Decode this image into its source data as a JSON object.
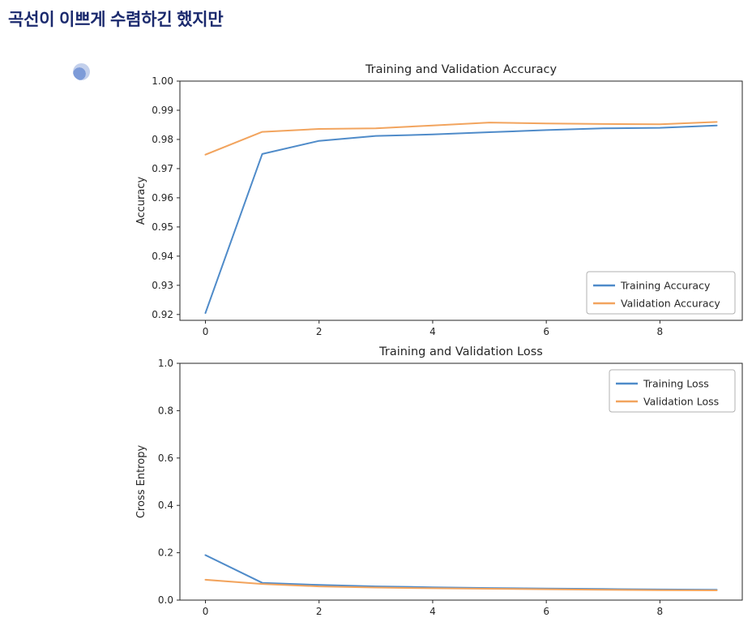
{
  "heading": {
    "text": "곡선이 이쁘게 수렴하긴 했지만"
  },
  "icons": {
    "avatar": "profile-avatar-icon"
  },
  "colors": {
    "heading_text": "#1b2a6e",
    "training_line": "#4f8bc9",
    "validation_line": "#f2a45e",
    "axis_text": "#262626",
    "legend_border": "#b0b0b0",
    "figure_bg": "#ffffff"
  },
  "chart_data": [
    {
      "type": "line",
      "title": "Training and Validation Accuracy",
      "xlabel": "",
      "ylabel": "Accuracy",
      "xlim": [
        -0.45,
        9.45
      ],
      "ylim": [
        0.918,
        1.0
      ],
      "xticks": [
        0,
        2,
        4,
        6,
        8
      ],
      "xtick_labels": [
        "0",
        "2",
        "4",
        "6",
        "8"
      ],
      "yticks": [
        0.92,
        0.93,
        0.94,
        0.95,
        0.96,
        0.97,
        0.98,
        0.99,
        1.0
      ],
      "ytick_labels": [
        "0.92",
        "0.93",
        "0.94",
        "0.95",
        "0.96",
        "0.97",
        "0.98",
        "0.99",
        "1.00"
      ],
      "grid": false,
      "legend": {
        "position": "lower right",
        "entries": [
          "Training Accuracy",
          "Validation Accuracy"
        ]
      },
      "x": [
        0,
        1,
        2,
        3,
        4,
        5,
        6,
        7,
        8,
        9
      ],
      "series": [
        {
          "name": "Training Accuracy",
          "color": "#4f8bc9",
          "values": [
            0.9205,
            0.975,
            0.9795,
            0.9812,
            0.9817,
            0.9825,
            0.9832,
            0.9838,
            0.984,
            0.9848
          ]
        },
        {
          "name": "Validation Accuracy",
          "color": "#f2a45e",
          "values": [
            0.9748,
            0.9826,
            0.9836,
            0.9838,
            0.9848,
            0.9858,
            0.9855,
            0.9853,
            0.9852,
            0.986
          ]
        }
      ]
    },
    {
      "type": "line",
      "title": "Training and Validation Loss",
      "xlabel": "",
      "ylabel": "Cross Entropy",
      "xlim": [
        -0.45,
        9.45
      ],
      "ylim": [
        0.0,
        1.0
      ],
      "xticks": [
        0,
        2,
        4,
        6,
        8
      ],
      "xtick_labels": [
        "0",
        "2",
        "4",
        "6",
        "8"
      ],
      "yticks": [
        0.0,
        0.2,
        0.4,
        0.6,
        0.8,
        1.0
      ],
      "ytick_labels": [
        "0.0",
        "0.2",
        "0.4",
        "0.6",
        "0.8",
        "1.0"
      ],
      "grid": false,
      "legend": {
        "position": "upper right",
        "entries": [
          "Training Loss",
          "Validation Loss"
        ]
      },
      "x": [
        0,
        1,
        2,
        3,
        4,
        5,
        6,
        7,
        8,
        9
      ],
      "series": [
        {
          "name": "Training Loss",
          "color": "#4f8bc9",
          "values": [
            0.19,
            0.073,
            0.064,
            0.058,
            0.054,
            0.051,
            0.049,
            0.047,
            0.045,
            0.044
          ]
        },
        {
          "name": "Validation Loss",
          "color": "#f2a45e",
          "values": [
            0.086,
            0.068,
            0.058,
            0.053,
            0.05,
            0.048,
            0.046,
            0.044,
            0.042,
            0.041
          ]
        }
      ]
    }
  ]
}
